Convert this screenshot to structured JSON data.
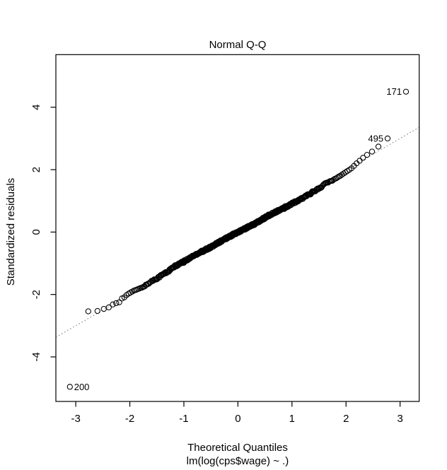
{
  "chart_data": {
    "type": "scatter",
    "title": "Normal Q-Q",
    "xlabel": "Theoretical Quantiles",
    "subtitle": "lm(log(cps$wage) ~ .)",
    "ylabel": "Standardized residuals",
    "x_ticks": [
      -3,
      -2,
      -1,
      0,
      1,
      2,
      3
    ],
    "y_ticks": [
      -4,
      -2,
      0,
      2,
      4
    ],
    "xlim": [
      -3.37,
      3.36
    ],
    "ylim": [
      -5.42,
      5.68
    ],
    "grid": "off",
    "legend": "none",
    "n_points": 534,
    "point_style": "open-circle",
    "point_color": "#000000",
    "background_color": "#ffffff",
    "reference_line": {
      "slope": 1.0,
      "intercept": 0.0,
      "style": "dotted",
      "color": "#7f7f7f"
    },
    "curve_anchors": [
      [
        -3.11,
        -4.96
      ],
      [
        -2.77,
        -2.54
      ],
      [
        -2.6,
        -2.53
      ],
      [
        -2.5,
        -2.47
      ],
      [
        -2.41,
        -2.44
      ],
      [
        -2.33,
        -2.33
      ],
      [
        -2.26,
        -2.28
      ],
      [
        -2.2,
        -2.26
      ],
      [
        -2.15,
        -2.13
      ],
      [
        -2.1,
        -2.09
      ],
      [
        -2.05,
        -2.0
      ],
      [
        -1.98,
        -1.93
      ],
      [
        -1.9,
        -1.86
      ],
      [
        -1.8,
        -1.8
      ],
      [
        -1.7,
        -1.7
      ],
      [
        -1.6,
        -1.58
      ],
      [
        -1.5,
        -1.48
      ],
      [
        -1.4,
        -1.37
      ],
      [
        -1.3,
        -1.27
      ],
      [
        -1.2,
        -1.14
      ],
      [
        -1.13,
        -1.06
      ],
      [
        -1.0,
        -0.95
      ],
      [
        -0.9,
        -0.84
      ],
      [
        -0.8,
        -0.74
      ],
      [
        -0.74,
        -0.68
      ],
      [
        -0.6,
        -0.57
      ],
      [
        -0.5,
        -0.48
      ],
      [
        -0.4,
        -0.38
      ],
      [
        -0.3,
        -0.28
      ],
      [
        -0.21,
        -0.19
      ],
      [
        -0.1,
        -0.09
      ],
      [
        0.0,
        0.0
      ],
      [
        0.1,
        0.08
      ],
      [
        0.2,
        0.17
      ],
      [
        0.31,
        0.26
      ],
      [
        0.4,
        0.36
      ],
      [
        0.5,
        0.46
      ],
      [
        0.6,
        0.56
      ],
      [
        0.7,
        0.64
      ],
      [
        0.83,
        0.75
      ],
      [
        0.95,
        0.86
      ],
      [
        1.1,
        1.0
      ],
      [
        1.2,
        1.09
      ],
      [
        1.3,
        1.2
      ],
      [
        1.4,
        1.3
      ],
      [
        1.49,
        1.39
      ],
      [
        1.62,
        1.55
      ],
      [
        1.75,
        1.66
      ],
      [
        1.86,
        1.77
      ],
      [
        1.95,
        1.87
      ],
      [
        2.02,
        1.95
      ],
      [
        2.1,
        2.04
      ],
      [
        2.2,
        2.21
      ],
      [
        2.33,
        2.4
      ],
      [
        2.41,
        2.5
      ],
      [
        2.5,
        2.6
      ],
      [
        2.6,
        2.74
      ],
      [
        2.77,
        3.0
      ],
      [
        3.11,
        4.5
      ]
    ],
    "labeled_points": [
      {
        "label": "171",
        "x": 3.11,
        "y": 4.5,
        "label_side": "left"
      },
      {
        "label": "495",
        "x": 2.77,
        "y": 3.0,
        "label_side": "left"
      },
      {
        "label": "200",
        "x": -3.11,
        "y": -4.96,
        "label_side": "right"
      }
    ]
  }
}
